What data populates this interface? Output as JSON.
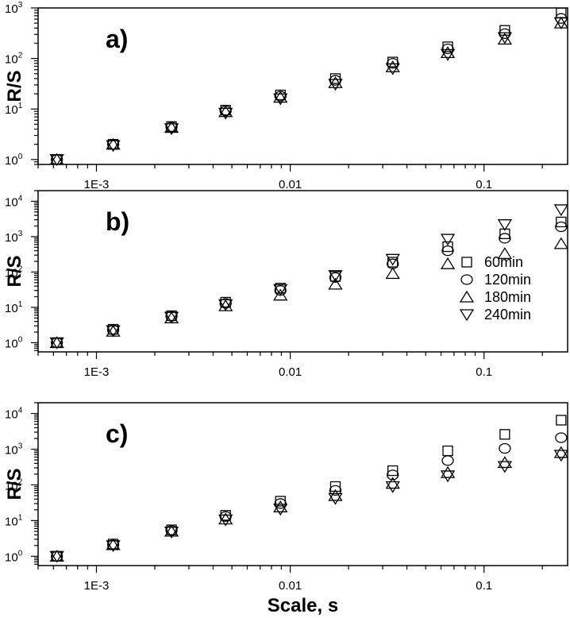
{
  "chart_data": [
    {
      "type": "scatter",
      "label": "a)",
      "ylabel": "R/S",
      "xscale": "log",
      "yscale": "log",
      "xlim": [
        0.0005,
        0.27
      ],
      "ylim": [
        0.8,
        1000
      ],
      "xticks": [
        {
          "value": 0.001,
          "label": "1E-3"
        },
        {
          "value": 0.01,
          "label": "0.01"
        },
        {
          "value": 0.1,
          "label": "0.1"
        }
      ],
      "yticks": [
        {
          "value": 1,
          "base": "10",
          "exp": "0"
        },
        {
          "value": 10,
          "base": "10",
          "exp": "1"
        },
        {
          "value": 100,
          "base": "10",
          "exp": "2"
        },
        {
          "value": 1000,
          "base": "10",
          "exp": "3"
        }
      ],
      "x": [
        0.000625,
        0.00122,
        0.00244,
        0.00464,
        0.0089,
        0.0171,
        0.0338,
        0.065,
        0.128,
        0.25
      ],
      "series": [
        {
          "name": "60min",
          "marker": "square",
          "values": [
            1.0,
            2.0,
            4.5,
            9.5,
            19,
            40,
            85,
            170,
            360,
            800
          ]
        },
        {
          "name": "120min",
          "marker": "circle",
          "values": [
            1.0,
            2.0,
            4.4,
            9.2,
            18,
            37,
            80,
            155,
            310,
            620
          ]
        },
        {
          "name": "180min",
          "marker": "triangle-up",
          "values": [
            1.0,
            2.0,
            4.3,
            8.8,
            17,
            33,
            68,
            130,
            240,
            500
          ]
        },
        {
          "name": "240min",
          "marker": "triangle-down",
          "values": [
            1.0,
            1.9,
            4.1,
            8.3,
            16,
            31,
            63,
            120,
            260,
            510
          ]
        }
      ]
    },
    {
      "type": "scatter",
      "label": "b)",
      "ylabel": "R/S",
      "xscale": "log",
      "yscale": "log",
      "xlim": [
        0.0005,
        0.27
      ],
      "ylim": [
        0.55,
        20000
      ],
      "xticks": [
        {
          "value": 0.001,
          "label": "1E-3"
        },
        {
          "value": 0.01,
          "label": "0.01"
        },
        {
          "value": 0.1,
          "label": "0.1"
        }
      ],
      "yticks": [
        {
          "value": 1,
          "base": "10",
          "exp": "0"
        },
        {
          "value": 10,
          "base": "10",
          "exp": "1"
        },
        {
          "value": 100,
          "base": "10",
          "exp": "2"
        },
        {
          "value": 1000,
          "base": "10",
          "exp": "3"
        },
        {
          "value": 10000,
          "base": "10",
          "exp": "4"
        }
      ],
      "legend": {
        "position": "right",
        "entries": [
          "60min",
          "120min",
          "180min",
          "240min"
        ]
      },
      "x": [
        0.000625,
        0.00122,
        0.00244,
        0.00464,
        0.0089,
        0.0171,
        0.0338,
        0.065,
        0.128,
        0.25
      ],
      "series": [
        {
          "name": "60min",
          "marker": "square",
          "values": [
            1.0,
            2.4,
            5.8,
            14,
            35,
            75,
            190,
            520,
            1200,
            2600
          ]
        },
        {
          "name": "120min",
          "marker": "circle",
          "values": [
            1.0,
            2.3,
            5.6,
            13,
            30,
            70,
            170,
            400,
            900,
            1900
          ]
        },
        {
          "name": "180min",
          "marker": "triangle-up",
          "values": [
            1.0,
            2.1,
            5.0,
            11,
            22,
            45,
            90,
            170,
            330,
            630
          ]
        },
        {
          "name": "240min",
          "marker": "triangle-down",
          "values": [
            1.0,
            2.2,
            5.3,
            12,
            32,
            80,
            230,
            850,
            2200,
            5800
          ]
        }
      ]
    },
    {
      "type": "scatter",
      "label": "c)",
      "ylabel": "R/S",
      "xscale": "log",
      "yscale": "log",
      "xlim": [
        0.0005,
        0.27
      ],
      "ylim": [
        0.55,
        20000
      ],
      "xticks": [
        {
          "value": 0.001,
          "label": "1E-3"
        },
        {
          "value": 0.01,
          "label": "0.01"
        },
        {
          "value": 0.1,
          "label": "0.1"
        }
      ],
      "yticks": [
        {
          "value": 1,
          "base": "10",
          "exp": "0"
        },
        {
          "value": 10,
          "base": "10",
          "exp": "1"
        },
        {
          "value": 100,
          "base": "10",
          "exp": "2"
        },
        {
          "value": 1000,
          "base": "10",
          "exp": "3"
        },
        {
          "value": 10000,
          "base": "10",
          "exp": "4"
        }
      ],
      "xlabel": "Scale, s",
      "x": [
        0.000625,
        0.00122,
        0.00244,
        0.00464,
        0.0089,
        0.0171,
        0.0338,
        0.065,
        0.128,
        0.25
      ],
      "series": [
        {
          "name": "60min",
          "marker": "square",
          "values": [
            1.0,
            2.2,
            5.5,
            14,
            35,
            90,
            250,
            900,
            2600,
            6500
          ]
        },
        {
          "name": "120min",
          "marker": "circle",
          "values": [
            1.0,
            2.1,
            5.3,
            13,
            30,
            70,
            190,
            480,
            1050,
            2100
          ]
        },
        {
          "name": "180min",
          "marker": "triangle-up",
          "values": [
            1.0,
            2.1,
            5.0,
            11,
            24,
            50,
            110,
            220,
            420,
            800
          ]
        },
        {
          "name": "240min",
          "marker": "triangle-down",
          "values": [
            1.0,
            2.0,
            4.8,
            10.5,
            21,
            42,
            90,
            180,
            330,
            680
          ]
        }
      ]
    }
  ]
}
